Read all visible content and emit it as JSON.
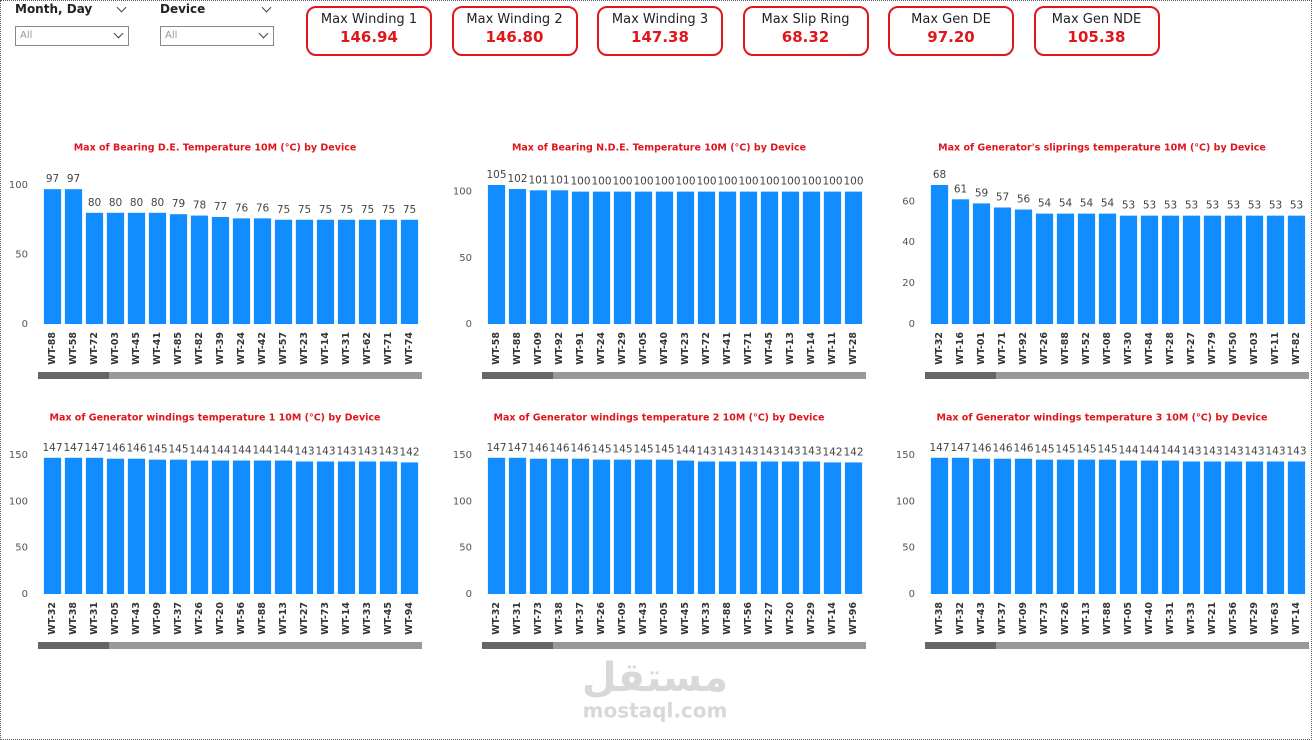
{
  "filters": [
    {
      "label": "Month, Day",
      "value": "All"
    },
    {
      "label": "Device",
      "value": "All"
    }
  ],
  "cards": [
    {
      "title": "Max Winding 1",
      "value": 146.94
    },
    {
      "title": "Max Winding 2",
      "value": 146.8,
      "value_label": "146.80"
    },
    {
      "title": "Max Winding 3",
      "value": 147.38
    },
    {
      "title": "Max Slip Ring",
      "value": 68.32
    },
    {
      "title": "Max Gen DE",
      "value": 97.2,
      "value_label": "97.20"
    },
    {
      "title": "Max Gen NDE",
      "value": 105.38
    }
  ],
  "watermark": {
    "logo": "مستقل",
    "site": "mostaql.com"
  },
  "chart_data": [
    {
      "type": "bar",
      "title": "Max of Bearing D.E. Temperature 10M (°C) by Device",
      "categories": [
        "WT-88",
        "WT-58",
        "WT-72",
        "WT-03",
        "WT-45",
        "WT-41",
        "WT-85",
        "WT-82",
        "WT-39",
        "WT-24",
        "WT-42",
        "WT-57",
        "WT-23",
        "WT-14",
        "WT-31",
        "WT-62",
        "WT-71",
        "WT-74"
      ],
      "values": [
        97,
        97,
        80,
        80,
        80,
        80,
        79,
        78,
        77,
        76,
        76,
        75,
        75,
        75,
        75,
        75,
        75,
        75
      ],
      "color": "#118dff",
      "ylim": [
        0,
        100
      ],
      "yticks": [
        0,
        50,
        100
      ],
      "grid": false
    },
    {
      "type": "bar",
      "title": "Max of Bearing N.D.E. Temperature 10M (°C) by Device",
      "categories": [
        "WT-58",
        "WT-88",
        "WT-09",
        "WT-92",
        "WT-91",
        "WT-24",
        "WT-29",
        "WT-05",
        "WT-40",
        "WT-23",
        "WT-72",
        "WT-41",
        "WT-71",
        "WT-45",
        "WT-13",
        "WT-14",
        "WT-11",
        "WT-28"
      ],
      "values": [
        105,
        102,
        101,
        101,
        100,
        100,
        100,
        100,
        100,
        100,
        100,
        100,
        100,
        100,
        100,
        100,
        100,
        100
      ],
      "color": "#118dff",
      "ylim": [
        0,
        105
      ],
      "yticks": [
        0,
        50,
        100
      ],
      "grid": false
    },
    {
      "type": "bar",
      "title": "Max of Generator's sliprings temperature 10M (°C) by Device",
      "categories": [
        "WT-32",
        "WT-16",
        "WT-01",
        "WT-71",
        "WT-92",
        "WT-26",
        "WT-88",
        "WT-52",
        "WT-08",
        "WT-30",
        "WT-84",
        "WT-28",
        "WT-27",
        "WT-79",
        "WT-50",
        "WT-03",
        "WT-11",
        "WT-82"
      ],
      "values": [
        68,
        61,
        59,
        57,
        56,
        54,
        54,
        54,
        54,
        53,
        53,
        53,
        53,
        53,
        53,
        53,
        53,
        53
      ],
      "color": "#118dff",
      "ylim": [
        0,
        68
      ],
      "yticks": [
        0,
        20,
        40,
        60
      ],
      "grid": false
    },
    {
      "type": "bar",
      "title": "Max of Generator windings temperature 1 10M (°C) by Device",
      "categories": [
        "WT-32",
        "WT-38",
        "WT-31",
        "WT-05",
        "WT-43",
        "WT-09",
        "WT-37",
        "WT-26",
        "WT-20",
        "WT-56",
        "WT-88",
        "WT-13",
        "WT-27",
        "WT-73",
        "WT-14",
        "WT-33",
        "WT-45",
        "WT-94"
      ],
      "values": [
        147,
        147,
        147,
        146,
        146,
        145,
        145,
        144,
        144,
        144,
        144,
        144,
        143,
        143,
        143,
        143,
        143,
        142
      ],
      "color": "#118dff",
      "ylim": [
        0,
        150
      ],
      "yticks": [
        0,
        50,
        100,
        150
      ],
      "grid": false
    },
    {
      "type": "bar",
      "title": "Max of Generator windings temperature 2 10M (°C) by Device",
      "categories": [
        "WT-32",
        "WT-31",
        "WT-73",
        "WT-38",
        "WT-37",
        "WT-26",
        "WT-09",
        "WT-43",
        "WT-05",
        "WT-45",
        "WT-33",
        "WT-88",
        "WT-56",
        "WT-27",
        "WT-20",
        "WT-29",
        "WT-14",
        "WT-96"
      ],
      "values": [
        147,
        147,
        146,
        146,
        146,
        145,
        145,
        145,
        145,
        144,
        143,
        143,
        143,
        143,
        143,
        143,
        142,
        142
      ],
      "color": "#118dff",
      "ylim": [
        0,
        150
      ],
      "yticks": [
        0,
        50,
        100,
        150
      ],
      "grid": false
    },
    {
      "type": "bar",
      "title": "Max of Generator windings temperature 3 10M (°C) by Device",
      "categories": [
        "WT-38",
        "WT-32",
        "WT-43",
        "WT-37",
        "WT-09",
        "WT-73",
        "WT-26",
        "WT-13",
        "WT-88",
        "WT-05",
        "WT-40",
        "WT-31",
        "WT-33",
        "WT-21",
        "WT-56",
        "WT-29",
        "WT-63",
        "WT-14"
      ],
      "values": [
        147,
        147,
        146,
        146,
        146,
        145,
        145,
        145,
        145,
        144,
        144,
        144,
        143,
        143,
        143,
        143,
        143,
        143
      ],
      "color": "#118dff",
      "ylim": [
        0,
        150
      ],
      "yticks": [
        0,
        50,
        100,
        150
      ],
      "grid": false
    }
  ]
}
